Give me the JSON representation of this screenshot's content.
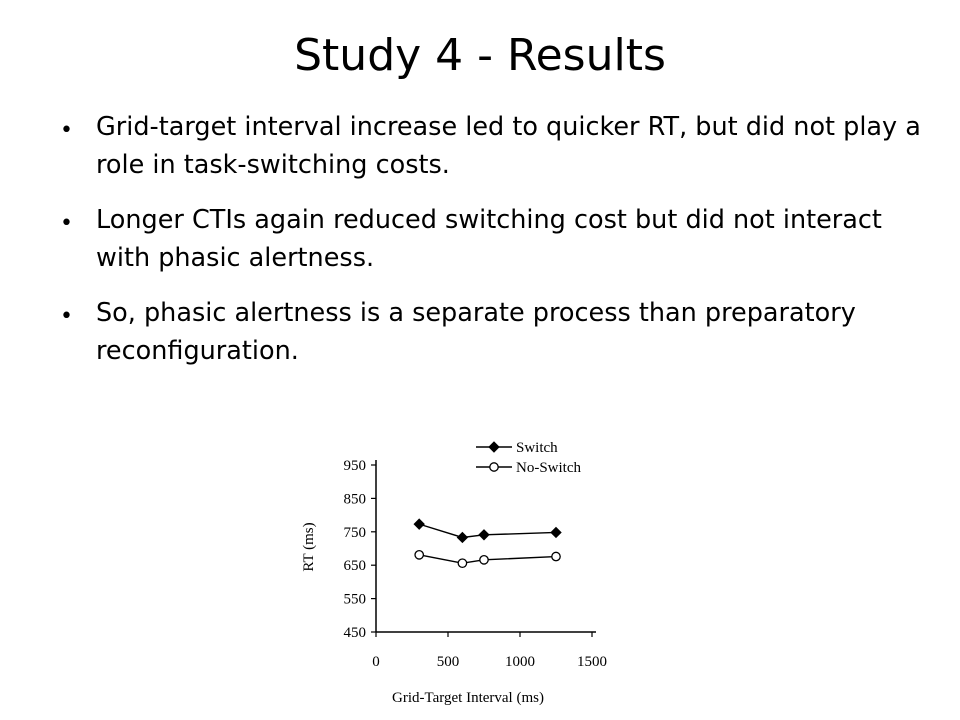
{
  "slide": {
    "title": "Study 4 - Results",
    "bullets": [
      "Grid-target interval increase led to quicker RT, but did not play a role in task-switching costs.",
      "Longer CTIs again reduced switching cost but did not interact with phasic alertness.",
      "So, phasic alertness is a separate process than preparatory reconfiguration."
    ]
  },
  "chart_data": {
    "type": "line",
    "title": "",
    "xlabel": "Grid-Target Interval (ms)",
    "ylabel": "RT (ms)",
    "xlim": [
      0,
      1500
    ],
    "ylim": [
      450,
      950
    ],
    "x_ticks": [
      0,
      500,
      1000,
      1500
    ],
    "y_ticks": [
      450,
      550,
      650,
      750,
      850,
      950
    ],
    "grid": false,
    "legend_position": "top-right",
    "series": [
      {
        "name": "Switch",
        "marker": "filled-diamond",
        "x": [
          300,
          600,
          750,
          1250
        ],
        "y": [
          773,
          733,
          741,
          748
        ]
      },
      {
        "name": "No-Switch",
        "marker": "open-circle",
        "x": [
          300,
          600,
          750,
          1250
        ],
        "y": [
          681,
          656,
          666,
          676
        ]
      }
    ]
  }
}
